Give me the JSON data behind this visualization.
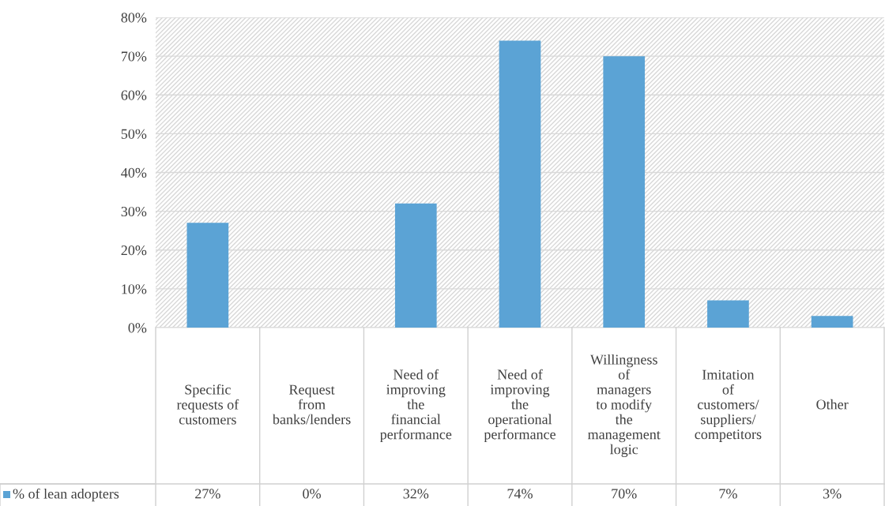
{
  "chart_data": {
    "type": "bar",
    "categories": [
      "Specific\nrequests of\ncustomers",
      "Request\nfrom\nbanks/lenders",
      "Need of\nimproving\nthe\nfinancial\nperformance",
      "Need of\nimproving\nthe\noperational\nperformance",
      "Willingness\nof\nmanagers\nto modify\nthe\nmanagement\nlogic",
      "Imitation\nof\ncustomers/\nsuppliers/\ncompetitors",
      "Other"
    ],
    "series": [
      {
        "name": "% of lean adopters",
        "color": "#5ba3d5",
        "values": [
          27,
          0,
          32,
          74,
          70,
          7,
          3
        ],
        "value_labels": [
          "27%",
          "0%",
          "32%",
          "74%",
          "70%",
          "7%",
          "3%"
        ]
      }
    ],
    "ylim": [
      0,
      80
    ],
    "yticks": [
      {
        "value": 0,
        "label": "0%"
      },
      {
        "value": 10,
        "label": "10%"
      },
      {
        "value": 20,
        "label": "20%"
      },
      {
        "value": 30,
        "label": "30%"
      },
      {
        "value": 40,
        "label": "40%"
      },
      {
        "value": 50,
        "label": "50%"
      },
      {
        "value": 60,
        "label": "60%"
      },
      {
        "value": 70,
        "label": "70%"
      },
      {
        "value": 80,
        "label": "80%"
      }
    ],
    "grid": "y",
    "legend": "bottom"
  }
}
